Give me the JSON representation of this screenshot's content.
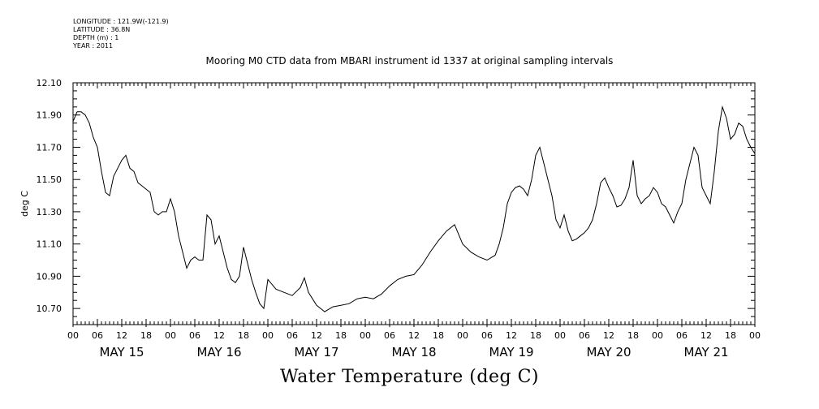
{
  "header": {
    "meta_lines": [
      "LONGITUDE : 121.9W(-121.9)",
      "LATITUDE : 36.8N",
      "DEPTH (m) : 1",
      "YEAR : 2011"
    ]
  },
  "chart_data": {
    "type": "line",
    "title": "Mooring M0 CTD data from MBARI instrument id 1337 at original sampling intervals",
    "ylabel": "deg C",
    "caption": "Water Temperature (deg C)",
    "xlim": [
      "2011-05-15T00:00",
      "2011-05-22T00:00"
    ],
    "ylim": [
      10.6,
      12.1
    ],
    "yticks": [
      "12.10",
      "11.90",
      "11.70",
      "11.50",
      "11.30",
      "11.10",
      "10.90",
      "10.70"
    ],
    "hour_labels": [
      "00",
      "06",
      "12",
      "18"
    ],
    "days": [
      "MAY 15",
      "MAY 16",
      "MAY 17",
      "MAY 18",
      "MAY 19",
      "MAY 20",
      "MAY 21"
    ],
    "grid": false,
    "series": [
      {
        "x": [
          "2011-05-15T00:00",
          "2011-05-15T01:00",
          "2011-05-15T02:00",
          "2011-05-15T03:00",
          "2011-05-15T04:00",
          "2011-05-15T05:00",
          "2011-05-15T06:00",
          "2011-05-15T07:00",
          "2011-05-15T08:00",
          "2011-05-15T09:00",
          "2011-05-15T10:00",
          "2011-05-15T11:00",
          "2011-05-15T12:00",
          "2011-05-15T13:00",
          "2011-05-15T14:00",
          "2011-05-15T15:00",
          "2011-05-15T16:00",
          "2011-05-15T17:00",
          "2011-05-15T18:00",
          "2011-05-15T19:00",
          "2011-05-15T20:00",
          "2011-05-15T21:00",
          "2011-05-15T22:00",
          "2011-05-15T23:00",
          "2011-05-16T00:00",
          "2011-05-16T01:00",
          "2011-05-16T02:00",
          "2011-05-16T03:00",
          "2011-05-16T04:00",
          "2011-05-16T05:00",
          "2011-05-16T06:00",
          "2011-05-16T07:00",
          "2011-05-16T08:00",
          "2011-05-16T09:00",
          "2011-05-16T10:00",
          "2011-05-16T11:00",
          "2011-05-16T12:00",
          "2011-05-16T13:00",
          "2011-05-16T14:00",
          "2011-05-16T15:00",
          "2011-05-16T16:00",
          "2011-05-16T17:00",
          "2011-05-16T18:00",
          "2011-05-16T19:00",
          "2011-05-16T20:00",
          "2011-05-16T21:00",
          "2011-05-16T22:00",
          "2011-05-16T23:00",
          "2011-05-17T00:00",
          "2011-05-17T01:00",
          "2011-05-17T02:00",
          "2011-05-17T04:00",
          "2011-05-17T06:00",
          "2011-05-17T08:00",
          "2011-05-17T09:00",
          "2011-05-17T10:00",
          "2011-05-17T11:00",
          "2011-05-17T12:00",
          "2011-05-17T13:00",
          "2011-05-17T14:00",
          "2011-05-17T16:00",
          "2011-05-17T18:00",
          "2011-05-17T20:00",
          "2011-05-17T22:00",
          "2011-05-18T00:00",
          "2011-05-18T02:00",
          "2011-05-18T04:00",
          "2011-05-18T06:00",
          "2011-05-18T08:00",
          "2011-05-18T10:00",
          "2011-05-18T12:00",
          "2011-05-18T14:00",
          "2011-05-18T16:00",
          "2011-05-18T18:00",
          "2011-05-18T20:00",
          "2011-05-18T22:00",
          "2011-05-19T00:00",
          "2011-05-19T02:00",
          "2011-05-19T04:00",
          "2011-05-19T06:00",
          "2011-05-19T08:00",
          "2011-05-19T09:00",
          "2011-05-19T10:00",
          "2011-05-19T11:00",
          "2011-05-19T12:00",
          "2011-05-19T13:00",
          "2011-05-19T14:00",
          "2011-05-19T15:00",
          "2011-05-19T16:00",
          "2011-05-19T17:00",
          "2011-05-19T18:00",
          "2011-05-19T19:00",
          "2011-05-19T20:00",
          "2011-05-19T21:00",
          "2011-05-19T22:00",
          "2011-05-19T23:00",
          "2011-05-20T00:00",
          "2011-05-20T01:00",
          "2011-05-20T02:00",
          "2011-05-20T03:00",
          "2011-05-20T04:00",
          "2011-05-20T05:00",
          "2011-05-20T06:00",
          "2011-05-20T07:00",
          "2011-05-20T08:00",
          "2011-05-20T09:00",
          "2011-05-20T10:00",
          "2011-05-20T11:00",
          "2011-05-20T12:00",
          "2011-05-20T13:00",
          "2011-05-20T14:00",
          "2011-05-20T15:00",
          "2011-05-20T16:00",
          "2011-05-20T17:00",
          "2011-05-20T18:00",
          "2011-05-20T19:00",
          "2011-05-20T20:00",
          "2011-05-20T21:00",
          "2011-05-20T22:00",
          "2011-05-20T23:00",
          "2011-05-21T00:00",
          "2011-05-21T01:00",
          "2011-05-21T02:00",
          "2011-05-21T03:00",
          "2011-05-21T04:00",
          "2011-05-21T05:00",
          "2011-05-21T06:00",
          "2011-05-21T07:00",
          "2011-05-21T08:00",
          "2011-05-21T09:00",
          "2011-05-21T10:00",
          "2011-05-21T11:00",
          "2011-05-21T12:00",
          "2011-05-21T13:00",
          "2011-05-21T14:00",
          "2011-05-21T15:00",
          "2011-05-21T16:00",
          "2011-05-21T17:00",
          "2011-05-21T18:00",
          "2011-05-21T19:00",
          "2011-05-21T20:00",
          "2011-05-21T21:00",
          "2011-05-21T22:00",
          "2011-05-21T23:00",
          "2011-05-22T00:00"
        ],
        "y": [
          11.86,
          11.92,
          11.92,
          11.9,
          11.85,
          11.76,
          11.7,
          11.55,
          11.42,
          11.4,
          11.52,
          11.57,
          11.62,
          11.65,
          11.57,
          11.55,
          11.48,
          11.46,
          11.44,
          11.42,
          11.3,
          11.28,
          11.3,
          11.3,
          11.38,
          11.3,
          11.15,
          11.05,
          10.95,
          11.0,
          11.02,
          11.0,
          11.0,
          11.28,
          11.25,
          11.1,
          11.15,
          11.05,
          10.95,
          10.88,
          10.86,
          10.9,
          11.08,
          10.98,
          10.88,
          10.8,
          10.73,
          10.7,
          10.88,
          10.85,
          10.82,
          10.8,
          10.78,
          10.83,
          10.89,
          10.8,
          10.76,
          10.72,
          10.7,
          10.68,
          10.71,
          10.72,
          10.73,
          10.76,
          10.77,
          10.76,
          10.79,
          10.84,
          10.88,
          10.9,
          10.91,
          10.97,
          11.05,
          11.12,
          11.18,
          11.22,
          11.1,
          11.05,
          11.02,
          11.0,
          11.03,
          11.1,
          11.2,
          11.35,
          11.42,
          11.45,
          11.46,
          11.44,
          11.4,
          11.5,
          11.65,
          11.7,
          11.6,
          11.5,
          11.4,
          11.25,
          11.2,
          11.28,
          11.18,
          11.12,
          11.13,
          11.15,
          11.17,
          11.2,
          11.25,
          11.35,
          11.48,
          11.51,
          11.45,
          11.4,
          11.33,
          11.34,
          11.38,
          11.45,
          11.62,
          11.4,
          11.35,
          11.38,
          11.4,
          11.45,
          11.42,
          11.35,
          11.33,
          11.28,
          11.23,
          11.3,
          11.35,
          11.5,
          11.6,
          11.7,
          11.65,
          11.45,
          11.4,
          11.35,
          11.55,
          11.8,
          11.95,
          11.88,
          11.75,
          11.78,
          11.85,
          11.83,
          11.75,
          11.7,
          11.66
        ]
      }
    ]
  }
}
